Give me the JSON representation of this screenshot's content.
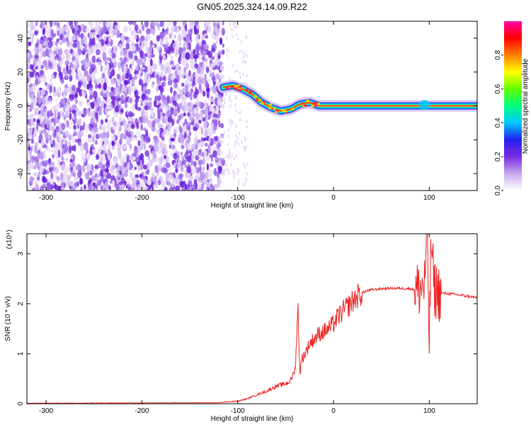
{
  "title": "GN05.2025.324.14.09.R22",
  "chart_data": [
    {
      "type": "heatmap",
      "xlabel": "Height of straight line (km)",
      "ylabel": "Frequency (Hz)",
      "xlim": [
        -320,
        150
      ],
      "ylim": [
        -50,
        50
      ],
      "xticks": [
        -300,
        -200,
        -100,
        0,
        100
      ],
      "yticks": [
        -40,
        -20,
        0,
        20,
        40
      ],
      "colorbar": {
        "label": "Normalized spectral amplitude",
        "range": [
          0,
          1
        ],
        "ticks": [
          "0.0",
          "0.2",
          "0.4",
          "0.6",
          "0.8"
        ],
        "ticks_values": [
          0,
          0.2,
          0.4,
          0.6,
          0.8
        ],
        "colormap": [
          "#ffffff",
          "#c8a8f0",
          "#7a2be0",
          "#2020f0",
          "#00c8ff",
          "#00ff80",
          "#60ff00",
          "#ffff00",
          "#ff8000",
          "#ff0000",
          "#ff00a0"
        ]
      },
      "noise_region_x": [
        -320,
        -115
      ],
      "ridge": {
        "x": [
          -115,
          -105,
          -95,
          -85,
          -75,
          -65,
          -55,
          -45,
          -35,
          -25,
          -15,
          -5,
          0,
          50,
          90,
          100,
          150
        ],
        "freq": [
          11,
          12,
          10,
          7,
          2,
          -1,
          -3,
          -2,
          1,
          2,
          0,
          0,
          0,
          0,
          0,
          0,
          0
        ]
      },
      "grid": false
    },
    {
      "type": "line",
      "xlabel": "Height of straight line (km)",
      "ylabel": "SNR (10 * v/v)",
      "y_multiplier_label": "(x10⁴)",
      "xlim": [
        -320,
        150
      ],
      "ylim": [
        0,
        3.4
      ],
      "xticks": [
        -300,
        -200,
        -100,
        0,
        100
      ],
      "yticks": [
        0,
        1,
        2,
        3
      ],
      "color": "#ee2222",
      "series": [
        {
          "x": [
            -320,
            -120,
            -110,
            -100,
            -90,
            -80,
            -70,
            -60,
            -50,
            -45,
            -40,
            -37,
            -35,
            -33,
            -30,
            -25,
            -20,
            -15,
            -10,
            -5,
            0,
            5,
            10,
            15,
            20,
            25,
            30,
            35,
            40,
            50,
            60,
            70,
            80,
            85,
            90,
            95,
            98,
            100,
            102,
            105,
            110,
            120,
            130,
            140,
            150
          ],
          "y": [
            0.01,
            0.02,
            0.04,
            0.05,
            0.1,
            0.18,
            0.25,
            0.35,
            0.4,
            0.45,
            0.7,
            1.9,
            0.6,
            0.9,
            1.0,
            1.2,
            1.3,
            1.4,
            1.45,
            1.5,
            1.6,
            1.75,
            1.85,
            1.95,
            2.05,
            2.15,
            2.22,
            2.26,
            2.28,
            2.3,
            2.31,
            2.31,
            2.3,
            2.28,
            2.3,
            2.4,
            3.4,
            1.2,
            3.3,
            2.3,
            2.22,
            2.2,
            2.18,
            2.15,
            2.12
          ]
        }
      ],
      "grid": false
    }
  ]
}
